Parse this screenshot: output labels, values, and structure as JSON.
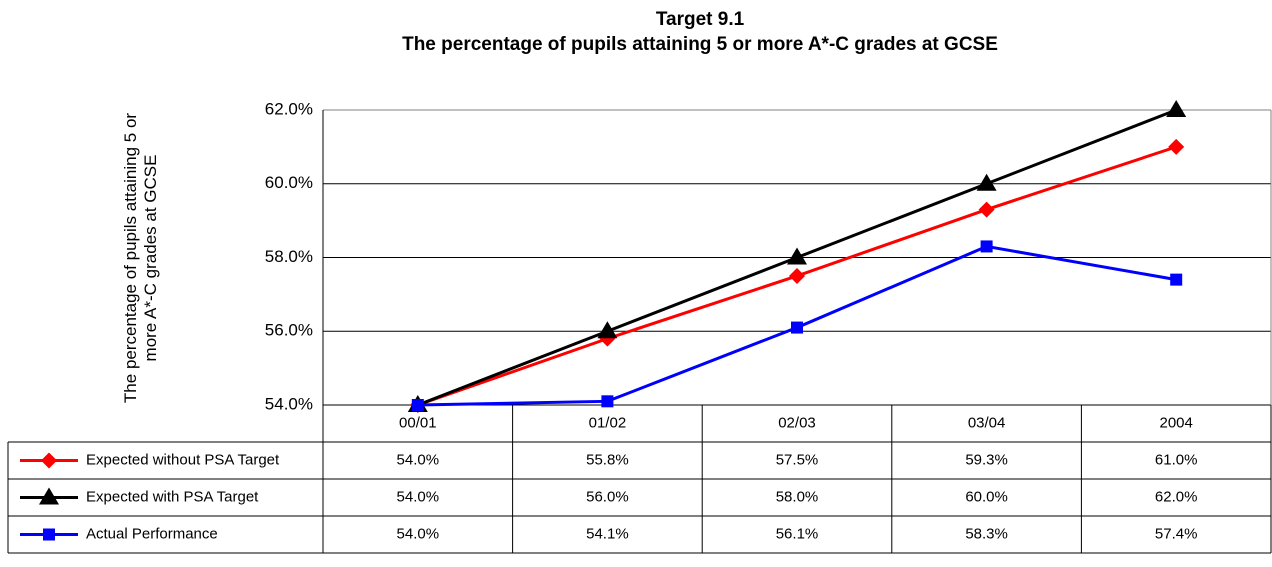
{
  "chart_data": {
    "type": "line",
    "title": "Target 9.1",
    "subtitle": "The percentage of pupils attaining 5 or more A*-C grades at GCSE",
    "y_label": "The percentage of pupils attaining 5 or more A*-C grades at GCSE",
    "categories": [
      "00/01",
      "01/02",
      "02/03",
      "03/04",
      "2004"
    ],
    "series": [
      {
        "name": "Expected without PSA Target",
        "color": "#ff0000",
        "marker": "diamond",
        "values": [
          54.0,
          55.8,
          57.5,
          59.3,
          61.0
        ],
        "value_labels": [
          "54.0%",
          "55.8%",
          "57.5%",
          "59.3%",
          "61.0%"
        ]
      },
      {
        "name": "Expected with PSA Target",
        "color": "#000000",
        "marker": "triangle",
        "values": [
          54.0,
          56.0,
          58.0,
          60.0,
          62.0
        ],
        "value_labels": [
          "54.0%",
          "56.0%",
          "58.0%",
          "60.0%",
          "62.0%"
        ]
      },
      {
        "name": "Actual Performance",
        "color": "#0000ff",
        "marker": "square",
        "values": [
          54.0,
          54.1,
          56.1,
          58.3,
          57.4
        ],
        "value_labels": [
          "54.0%",
          "54.1%",
          "56.1%",
          "58.3%",
          "57.4%"
        ]
      }
    ],
    "ylim": [
      54,
      62
    ],
    "yticks": [
      {
        "value": 54,
        "label": "54.0%"
      },
      {
        "value": 56,
        "label": "56.0%"
      },
      {
        "value": 58,
        "label": "58.0%"
      },
      {
        "value": 60,
        "label": "60.0%"
      },
      {
        "value": 62,
        "label": "62.0%"
      }
    ],
    "grid": true
  }
}
